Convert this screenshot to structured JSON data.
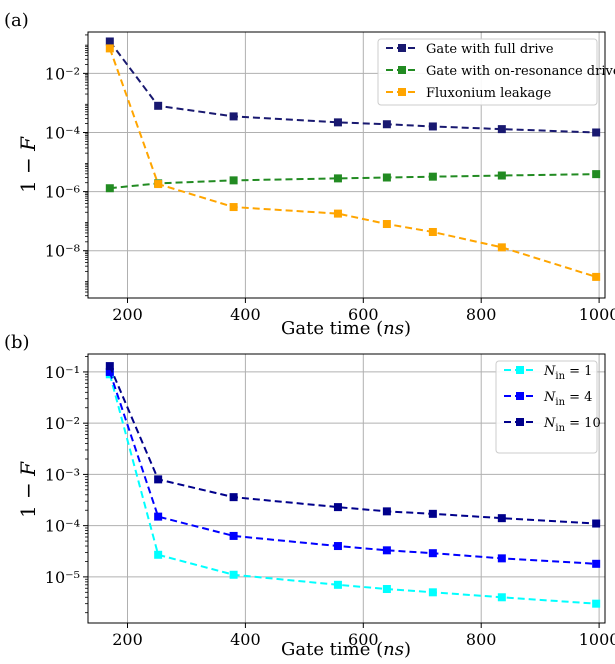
{
  "chart_data": [
    {
      "panel_label": "(a)",
      "type": "line",
      "xlabel": "Gate time (ns)",
      "ylabel": "1 − F",
      "xlim": [
        133,
        1010
      ],
      "ylim_log10": [
        -9.6,
        -0.6
      ],
      "yscale": "log",
      "xticks": [
        200,
        400,
        600,
        800,
        1000
      ],
      "xtick_labels": [
        "200",
        "400",
        "600",
        "800",
        "1000"
      ],
      "yticks_log10": [
        -8,
        -6,
        -4,
        -2
      ],
      "ytick_labels": [
        "10⁻⁸",
        "10⁻⁶",
        "10⁻⁴",
        "10⁻²"
      ],
      "grid": true,
      "legend_position": "top-right",
      "x": [
        170,
        252,
        380,
        557,
        640,
        718,
        835,
        995
      ],
      "series": [
        {
          "name": "Gate with full drive",
          "color": "#191970",
          "values": [
            0.12,
            0.0008,
            0.00035,
            0.00022,
            0.00019,
            0.00016,
            0.00013,
            0.0001
          ]
        },
        {
          "name": "Gate with on-resonance drive",
          "color": "#228b22",
          "values": [
            1.3e-06,
            1.9e-06,
            2.4e-06,
            2.8e-06,
            3e-06,
            3.2e-06,
            3.5e-06,
            3.9e-06
          ]
        },
        {
          "name": "Fluxonium leakage",
          "color": "#ffa500",
          "values": [
            0.07,
            1.8e-06,
            3e-07,
            1.8e-07,
            8e-08,
            4.3e-08,
            1.3e-08,
            1.3e-09
          ]
        }
      ]
    },
    {
      "panel_label": "(b)",
      "type": "line",
      "xlabel": "Gate time (ns)",
      "ylabel": "1 − F",
      "xlim": [
        133,
        1010
      ],
      "ylim_log10": [
        -5.9,
        -0.65
      ],
      "yscale": "log",
      "xticks": [
        200,
        400,
        600,
        800,
        1000
      ],
      "xtick_labels": [
        "200",
        "400",
        "600",
        "800",
        "1000"
      ],
      "yticks_log10": [
        -5,
        -4,
        -3,
        -2,
        -1
      ],
      "ytick_labels": [
        "10⁻⁵",
        "10⁻⁴",
        "10⁻³",
        "10⁻²",
        "10⁻¹"
      ],
      "grid": true,
      "legend_position": "top-right",
      "x": [
        170,
        252,
        380,
        557,
        640,
        718,
        835,
        995
      ],
      "series": [
        {
          "name": "N_in = 1",
          "legend_main": "N",
          "legend_sub": "in",
          "legend_tail": " = 1",
          "color": "#00ffff",
          "values": [
            0.09,
            2.7e-05,
            1.1e-05,
            7e-06,
            5.8e-06,
            5e-06,
            4e-06,
            3e-06
          ]
        },
        {
          "name": "N_in = 4",
          "legend_main": "N",
          "legend_sub": "in",
          "legend_tail": " = 4",
          "color": "#0000ff",
          "values": [
            0.1,
            0.00015,
            6.3e-05,
            4e-05,
            3.3e-05,
            2.9e-05,
            2.3e-05,
            1.8e-05
          ]
        },
        {
          "name": "N_in = 10",
          "legend_main": "N",
          "legend_sub": "in",
          "legend_tail": " = 10",
          "color": "#00008b",
          "values": [
            0.13,
            0.0008,
            0.00036,
            0.00023,
            0.00019,
            0.00017,
            0.00014,
            0.00011
          ]
        }
      ]
    }
  ]
}
